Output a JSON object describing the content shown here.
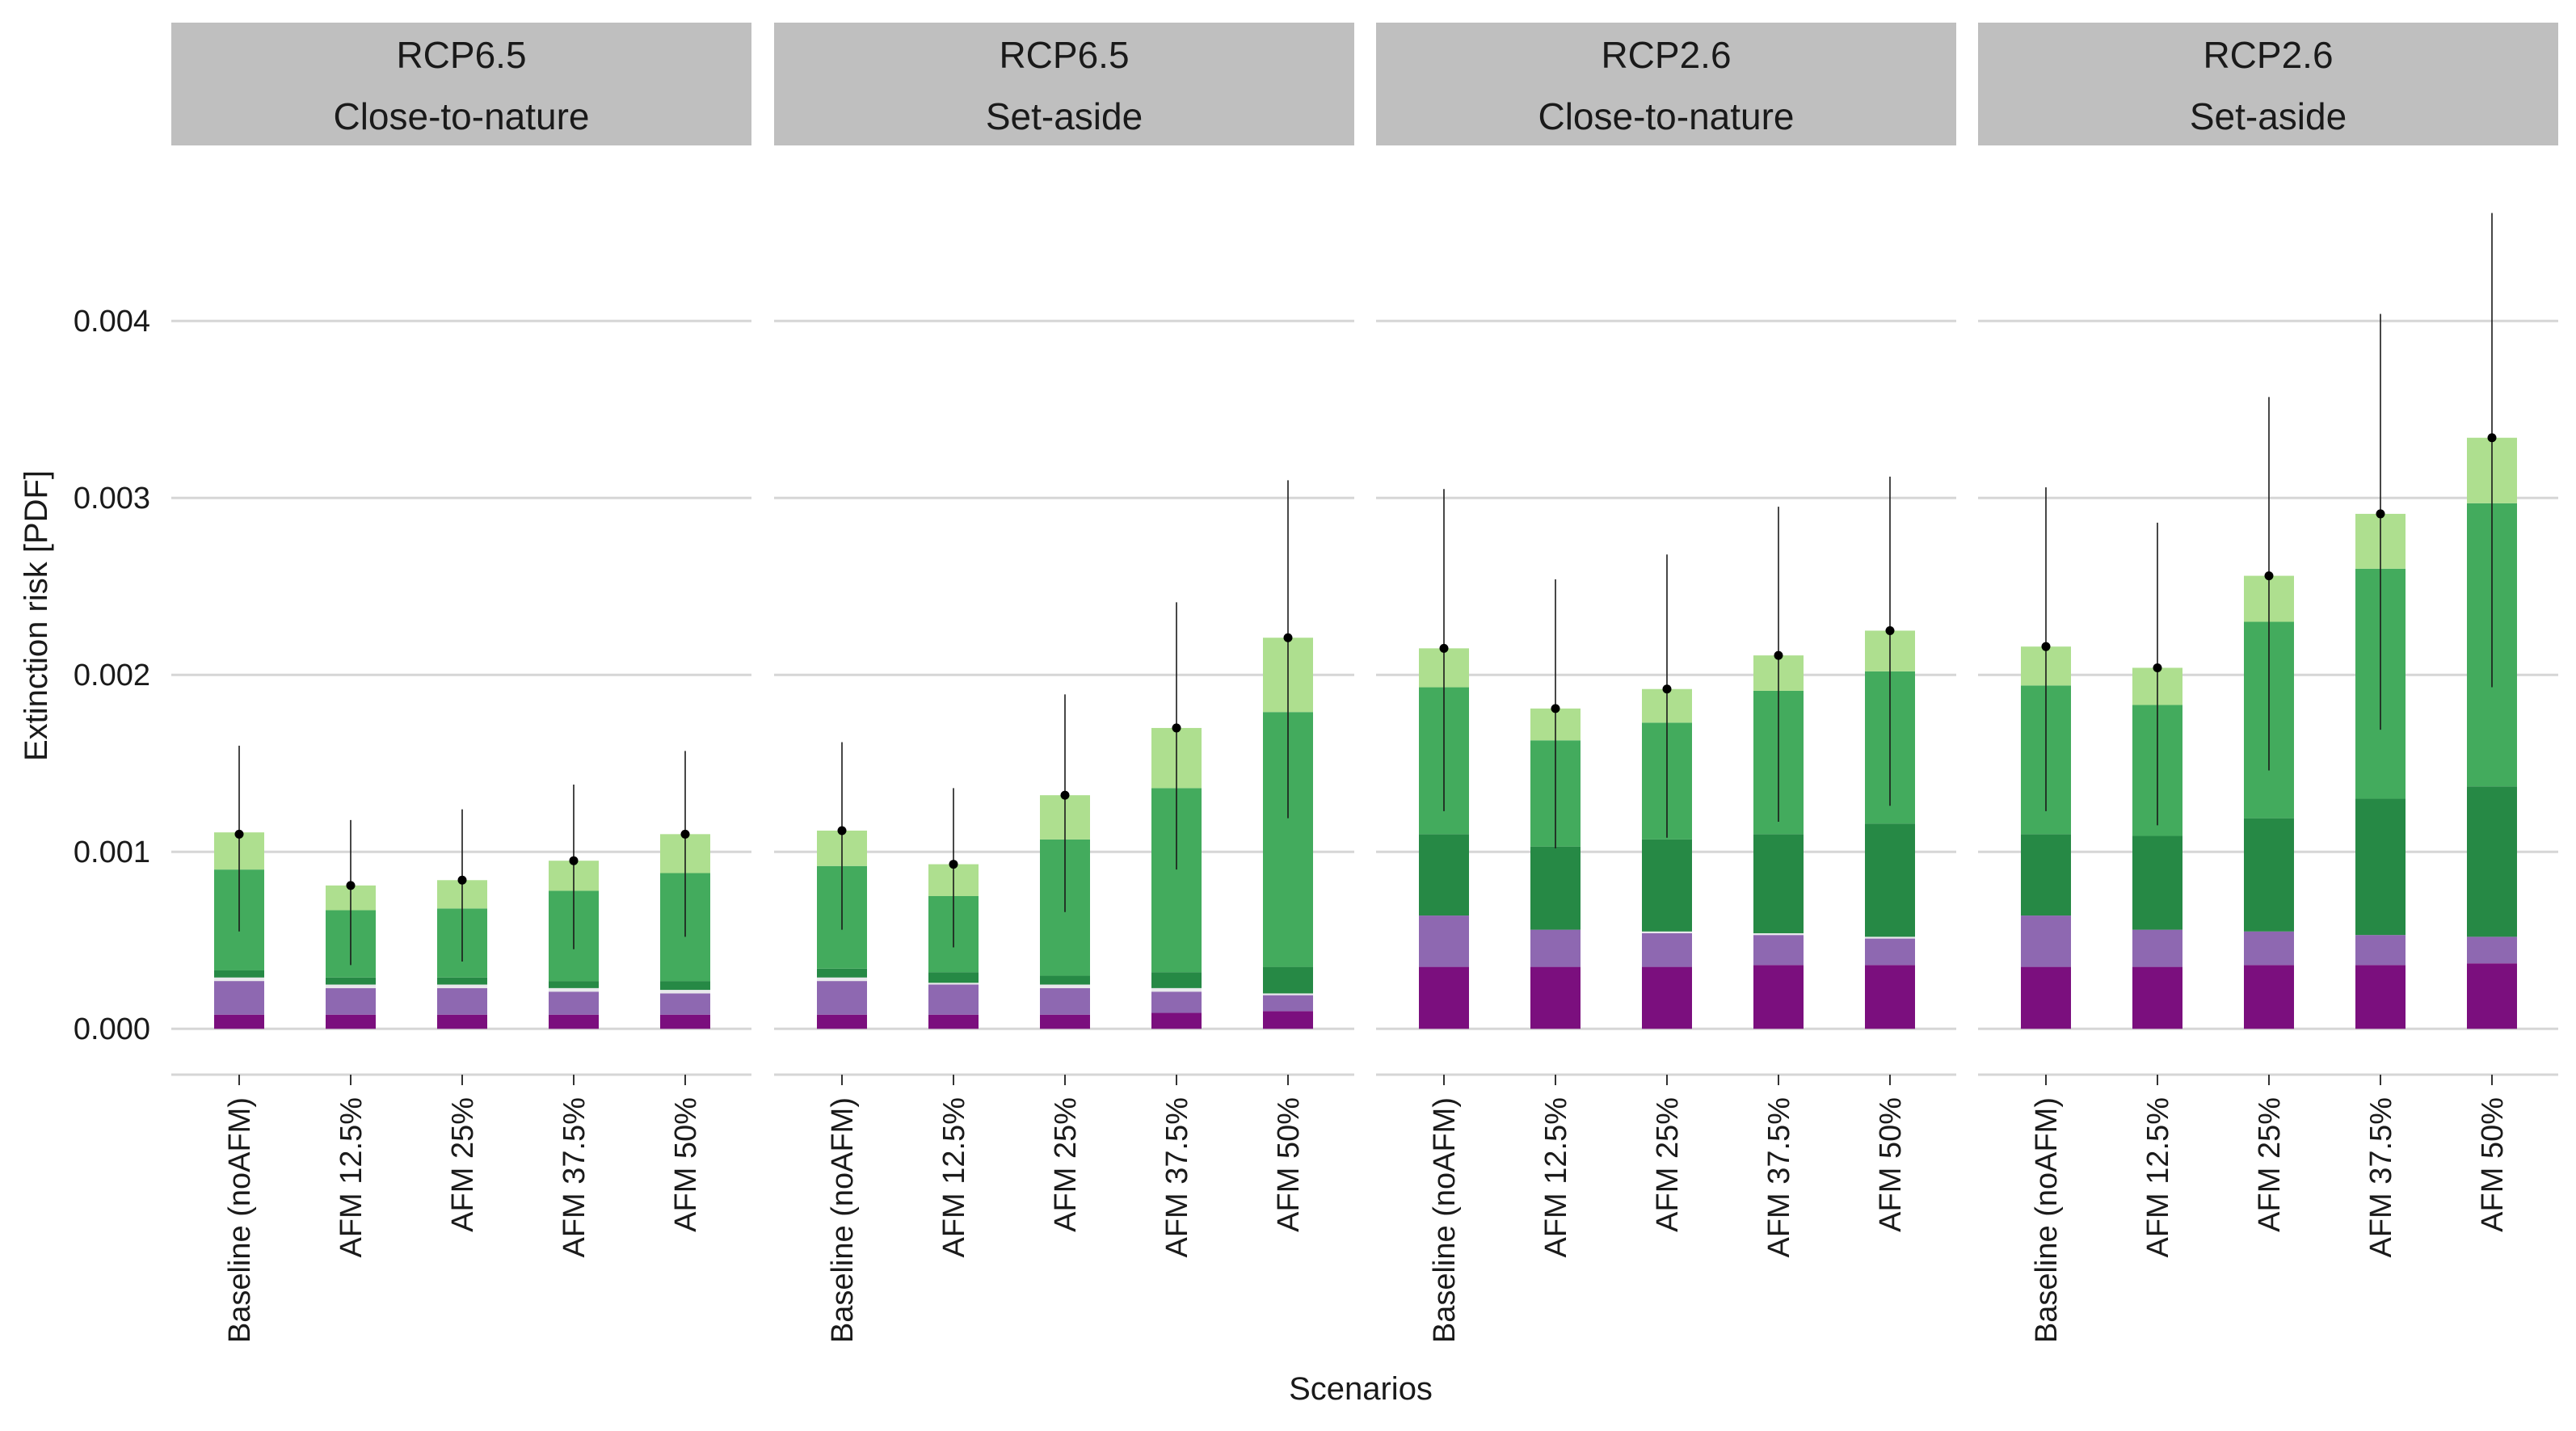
{
  "chart_data": {
    "type": "bar",
    "stacked": true,
    "xlabel": "Scenarios",
    "ylabel": "Extinction risk [PDF]",
    "ylim": [
      -0.00025,
      0.0048
    ],
    "yticks": [
      {
        "value": 0.0,
        "label": "0.000"
      },
      {
        "value": 0.001,
        "label": "0.001"
      },
      {
        "value": 0.002,
        "label": "0.002"
      },
      {
        "value": 0.003,
        "label": "0.003"
      },
      {
        "value": 0.004,
        "label": "0.004"
      }
    ],
    "grid": true,
    "legend": "none",
    "categories": [
      "Baseline (noAFM)",
      "AFM 12.5%",
      "AFM 25%",
      "AFM 37.5%",
      "AFM 50%"
    ],
    "segment_colors": [
      "#7b0f7e",
      "#8e68b1",
      "#e8e8ec",
      "#268945",
      "#43ab5d",
      "#aedf8f"
    ],
    "colors": {
      "point": "#000000",
      "errorbar": "#1a1a1a",
      "grid": "#d6d6d6",
      "strip": "#bfbfbf"
    },
    "panels": [
      {
        "title_line1": "RCP6.5",
        "title_line2": "Close-to-nature",
        "bars": [
          {
            "segments": [
              8e-05,
              0.00019,
              2e-05,
              4e-05,
              0.00057,
              0.00021
            ],
            "point": 0.0011,
            "low": 0.00055,
            "high": 0.0016
          },
          {
            "segments": [
              8e-05,
              0.00015,
              2e-05,
              4e-05,
              0.00038,
              0.00014
            ],
            "point": 0.00081,
            "low": 0.00036,
            "high": 0.00118
          },
          {
            "segments": [
              8e-05,
              0.00015,
              2e-05,
              4e-05,
              0.00039,
              0.00016
            ],
            "point": 0.00084,
            "low": 0.00038,
            "high": 0.00124
          },
          {
            "segments": [
              8e-05,
              0.00013,
              2e-05,
              4e-05,
              0.00051,
              0.00017
            ],
            "point": 0.00095,
            "low": 0.00045,
            "high": 0.00138
          },
          {
            "segments": [
              8e-05,
              0.00012,
              2e-05,
              5e-05,
              0.00061,
              0.00022
            ],
            "point": 0.0011,
            "low": 0.00052,
            "high": 0.00157
          }
        ]
      },
      {
        "title_line1": "RCP6.5",
        "title_line2": "Set-aside",
        "bars": [
          {
            "segments": [
              8e-05,
              0.00019,
              2e-05,
              5e-05,
              0.00058,
              0.0002
            ],
            "point": 0.00112,
            "low": 0.00056,
            "high": 0.00162
          },
          {
            "segments": [
              8e-05,
              0.00017,
              1e-05,
              6e-05,
              0.00043,
              0.00018
            ],
            "point": 0.00093,
            "low": 0.00046,
            "high": 0.00136
          },
          {
            "segments": [
              8e-05,
              0.00015,
              2e-05,
              5e-05,
              0.00077,
              0.00025
            ],
            "point": 0.00132,
            "low": 0.00066,
            "high": 0.00189
          },
          {
            "segments": [
              9e-05,
              0.00012,
              2e-05,
              9e-05,
              0.00104,
              0.00034
            ],
            "point": 0.0017,
            "low": 0.0009,
            "high": 0.00241
          },
          {
            "segments": [
              0.0001,
              9e-05,
              1e-05,
              0.00015,
              0.00144,
              0.00042
            ],
            "point": 0.00221,
            "low": 0.00119,
            "high": 0.0031
          }
        ]
      },
      {
        "title_line1": "RCP2.6",
        "title_line2": "Close-to-nature",
        "bars": [
          {
            "segments": [
              0.00035,
              0.00029,
              0.0,
              0.00046,
              0.00083,
              0.00022
            ],
            "point": 0.00215,
            "low": 0.00123,
            "high": 0.00305
          },
          {
            "segments": [
              0.00035,
              0.00021,
              0.0,
              0.00047,
              0.0006,
              0.00018
            ],
            "point": 0.00181,
            "low": 0.00102,
            "high": 0.00254
          },
          {
            "segments": [
              0.00035,
              0.00019,
              1e-05,
              0.00052,
              0.00066,
              0.00019
            ],
            "point": 0.00192,
            "low": 0.00108,
            "high": 0.00268
          },
          {
            "segments": [
              0.00036,
              0.00017,
              1e-05,
              0.00056,
              0.00081,
              0.0002
            ],
            "point": 0.00211,
            "low": 0.00117,
            "high": 0.00295
          },
          {
            "segments": [
              0.00036,
              0.00015,
              1e-05,
              0.00064,
              0.00086,
              0.00023
            ],
            "point": 0.00225,
            "low": 0.00126,
            "high": 0.00312
          }
        ]
      },
      {
        "title_line1": "RCP2.6",
        "title_line2": "Set-aside",
        "bars": [
          {
            "segments": [
              0.00035,
              0.00029,
              0.0,
              0.00046,
              0.00084,
              0.00022
            ],
            "point": 0.00216,
            "low": 0.00123,
            "high": 0.00306
          },
          {
            "segments": [
              0.00035,
              0.00021,
              0.0,
              0.00053,
              0.00074,
              0.00021
            ],
            "point": 0.00204,
            "low": 0.00115,
            "high": 0.00286
          },
          {
            "segments": [
              0.00036,
              0.00019,
              0.0,
              0.00064,
              0.00111,
              0.00026
            ],
            "point": 0.00256,
            "low": 0.00146,
            "high": 0.00357
          },
          {
            "segments": [
              0.00036,
              0.00017,
              0.0,
              0.00077,
              0.0013,
              0.00031
            ],
            "point": 0.00291,
            "low": 0.00169,
            "high": 0.00404
          },
          {
            "segments": [
              0.00037,
              0.00015,
              0.0,
              0.00085,
              0.0016,
              0.00037
            ],
            "point": 0.00334,
            "low": 0.00193,
            "high": 0.00461
          }
        ]
      }
    ]
  }
}
